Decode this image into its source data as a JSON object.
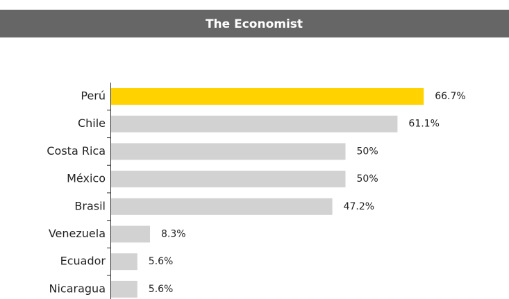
{
  "chart_data": {
    "type": "barh",
    "title": "The Economist",
    "categories": [
      "Perú",
      "Chile",
      "Costa Rica",
      "México",
      "Brasil",
      "Venezuela",
      "Ecuador",
      "Nicaragua"
    ],
    "values": [
      66.7,
      61.1,
      50,
      50,
      47.2,
      8.3,
      5.6,
      5.6
    ],
    "value_labels": [
      "66.7%",
      "61.1%",
      "50%",
      "50%",
      "47.2%",
      "8.3%",
      "5.6%",
      "5.6%"
    ],
    "colors": [
      "#ffd200",
      "#d2d2d2",
      "#d2d2d2",
      "#d2d2d2",
      "#d2d2d2",
      "#d2d2d2",
      "#d2d2d2",
      "#d2d2d2"
    ]
  }
}
